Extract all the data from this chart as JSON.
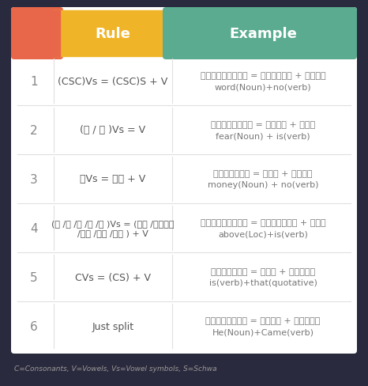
{
  "bg_color": "#2a2a3e",
  "table_bg": "#ffffff",
  "header_col1_color": "#e8674a",
  "header_col2_color": "#f0b429",
  "header_col3_color": "#5aab8f",
  "header_text_color": "#ffffff",
  "row_num_color": "#888888",
  "row_rule_color": "#555555",
  "row_example_color": "#777777",
  "divider_color": "#e0e0e0",
  "footer_text_color": "#999999",
  "col2_header": "Rule",
  "col3_header": "Example",
  "footer": "C=Consonants, V=Vowels, Vs=Vowel symbols, S=Schwa",
  "rows": [
    {
      "num": "1",
      "rule": "(CSC)Vs = (CSC)S + V",
      "example_line1": "വാക്കില്ല = വാക്ക് + ഇല്ല",
      "example_line2": "word(Noun)+no(verb)"
    },
    {
      "num": "2",
      "rule": "(യ / വ )Vs = V",
      "example_line1": "പേടിയാണ് = പേടി + ആണ്",
      "example_line2": "fear(Noun) + is(verb)"
    },
    {
      "num": "3",
      "rule": "നVs = ന് + V",
      "example_line1": "പണമില്ല = പണം + ഇല്ല",
      "example_line2": "money(Noun) + no(verb)"
    },
    {
      "num": "4",
      "rule": "(ര /ല /ള /ന /ണ )Vs = (റ് /റ്ല്\n/ഴ് /ന് /ണ് ) + V",
      "example_line1": "മുകളിലാണ് = മുകളില് + ആണ്",
      "example_line2": "above(Loc)+is(verb)"
    },
    {
      "num": "5",
      "rule": "CVs = (CS) + V",
      "example_line1": "ആണെന്ന് = ആണ് + എന്ന്",
      "example_line2": "is(verb)+that(quotative)"
    },
    {
      "num": "6",
      "rule": "Just split",
      "example_line1": "അവനവന്നു = അവന് + വന്നു",
      "example_line2": "He(Noun)+Came(verb)"
    }
  ]
}
